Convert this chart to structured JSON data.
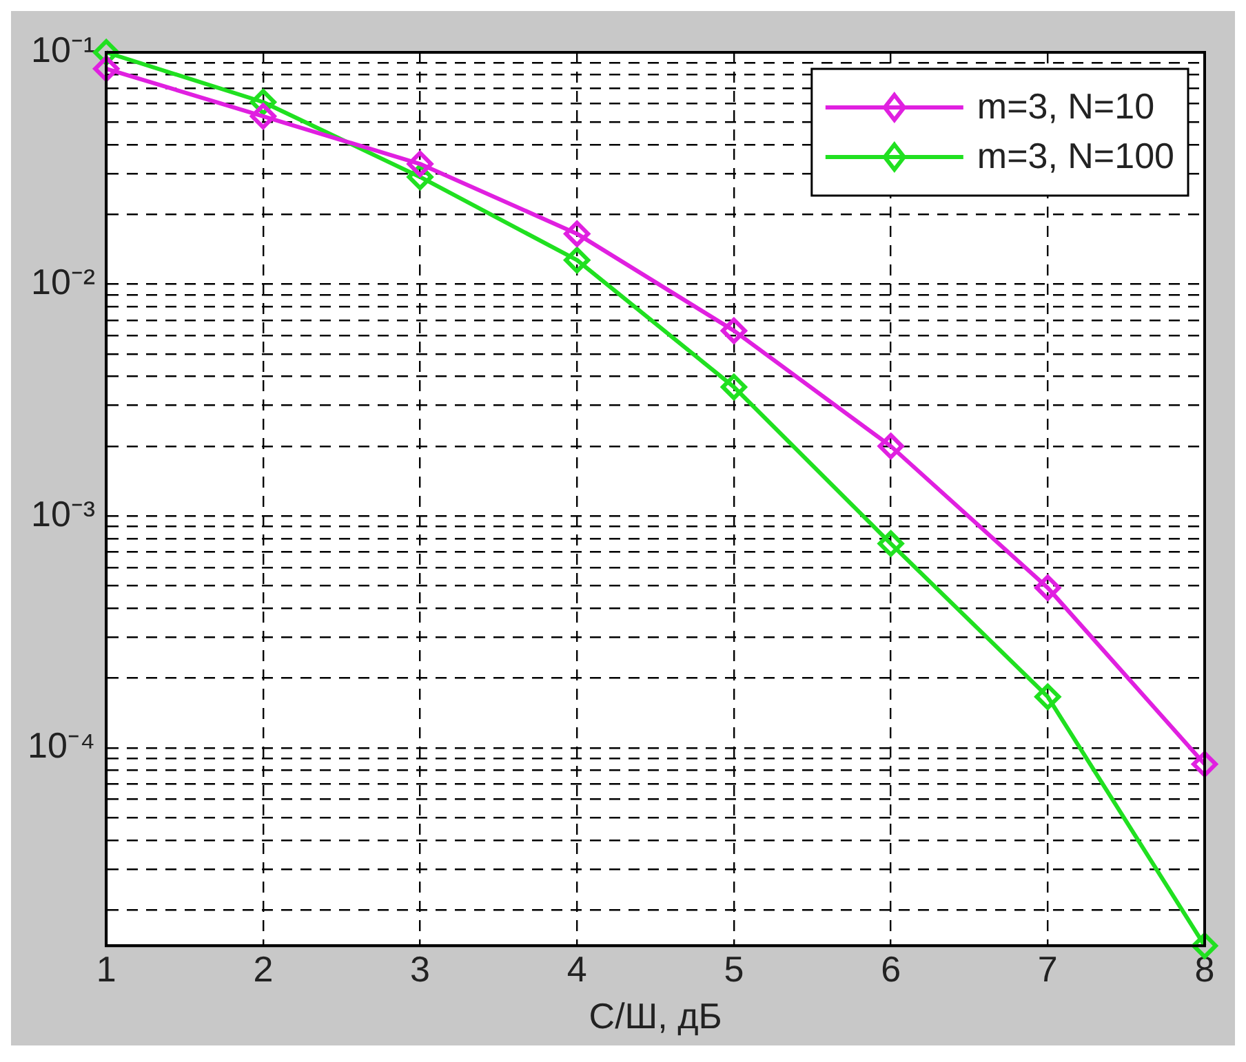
{
  "chart_data": {
    "type": "line",
    "xlabel": "С/Ш, дБ",
    "x": [
      1,
      2,
      3,
      4,
      5,
      6,
      7,
      8
    ],
    "series": [
      {
        "name": "m=3, N=10",
        "color": "#e020e0",
        "values": [
          0.085,
          0.053,
          0.033,
          0.0165,
          0.0063,
          0.002,
          0.00049,
          8.5e-05
        ]
      },
      {
        "name": "m=3, N=100",
        "color": "#20e020",
        "values": [
          0.1,
          0.061,
          0.029,
          0.0127,
          0.0036,
          0.00076,
          0.000166,
          1.4e-05
        ]
      }
    ],
    "xlim": [
      1,
      8
    ],
    "xticks": [
      1,
      2,
      3,
      4,
      5,
      6,
      7,
      8
    ],
    "log": "y",
    "ylim": [
      1.4e-05,
      0.1
    ],
    "yticks": [
      {
        "value": 2e-05,
        "label": null
      },
      {
        "value": 3e-05,
        "label": null
      },
      {
        "value": 4e-05,
        "label": null
      },
      {
        "value": 5e-05,
        "label": null
      },
      {
        "value": 6e-05,
        "label": null
      },
      {
        "value": 7e-05,
        "label": null
      },
      {
        "value": 8e-05,
        "label": null
      },
      {
        "value": 9e-05,
        "label": null
      },
      {
        "value": 0.0001,
        "label": "10⁻⁴"
      },
      {
        "value": 0.0002,
        "label": null
      },
      {
        "value": 0.0003,
        "label": null
      },
      {
        "value": 0.0004,
        "label": null
      },
      {
        "value": 0.0005,
        "label": null
      },
      {
        "value": 0.0006,
        "label": null
      },
      {
        "value": 0.0007,
        "label": null
      },
      {
        "value": 0.0008,
        "label": null
      },
      {
        "value": 0.0009,
        "label": null
      },
      {
        "value": 0.001,
        "label": "10⁻³"
      },
      {
        "value": 0.002,
        "label": null
      },
      {
        "value": 0.003,
        "label": null
      },
      {
        "value": 0.004,
        "label": null
      },
      {
        "value": 0.005,
        "label": null
      },
      {
        "value": 0.006,
        "label": null
      },
      {
        "value": 0.007,
        "label": null
      },
      {
        "value": 0.008,
        "label": null
      },
      {
        "value": 0.009,
        "label": null
      },
      {
        "value": 0.01,
        "label": "10⁻²"
      },
      {
        "value": 0.02,
        "label": null
      },
      {
        "value": 0.03,
        "label": null
      },
      {
        "value": 0.04,
        "label": null
      },
      {
        "value": 0.05,
        "label": null
      },
      {
        "value": 0.06,
        "label": null
      },
      {
        "value": 0.07,
        "label": null
      },
      {
        "value": 0.08,
        "label": null
      },
      {
        "value": 0.09,
        "label": null
      },
      {
        "value": 0.1,
        "label": "10⁻¹"
      }
    ],
    "grid": true,
    "legend": "top right",
    "marker": "diamond",
    "line_style": "solid"
  }
}
